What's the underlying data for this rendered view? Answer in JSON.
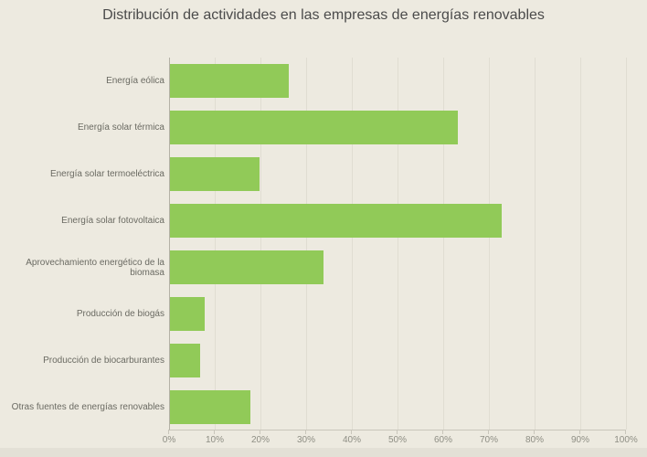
{
  "title": "Distribución de actividades en las empresas de energías renovables",
  "chart_data": {
    "type": "bar",
    "orientation": "horizontal",
    "title": "Distribución de actividades en las empresas de energías renovables",
    "categories": [
      "Energía eólica",
      "Energía solar térmica",
      "Energía solar termoeléctrica",
      "Energía solar fotovoltaica",
      "Aprovechamiento energético de la biomasa",
      "Producción de biogás",
      "Producción de biocarburantes",
      "Otras fuentes de energías renovables"
    ],
    "values": [
      26,
      63,
      19.5,
      72.5,
      33.5,
      7.5,
      6.5,
      17.5
    ],
    "unit": "%",
    "xlabel": "",
    "ylabel": "",
    "xlim": [
      0,
      100
    ],
    "x_ticks": [
      "0%",
      "10%",
      "20%",
      "30%",
      "40%",
      "50%",
      "60%",
      "70%",
      "80%",
      "90%",
      "100%"
    ],
    "grid": true,
    "legend": false
  },
  "colors": {
    "background": "#edeae0",
    "bar": "#91ca58",
    "title_text": "#4b4b4b",
    "category_text": "#6a6a62",
    "tick_text": "#8e8e84",
    "gridline": "#e0ddd2",
    "axis_line": "#b4b1a6",
    "axis_bottom_line": "#c9c6bb"
  }
}
